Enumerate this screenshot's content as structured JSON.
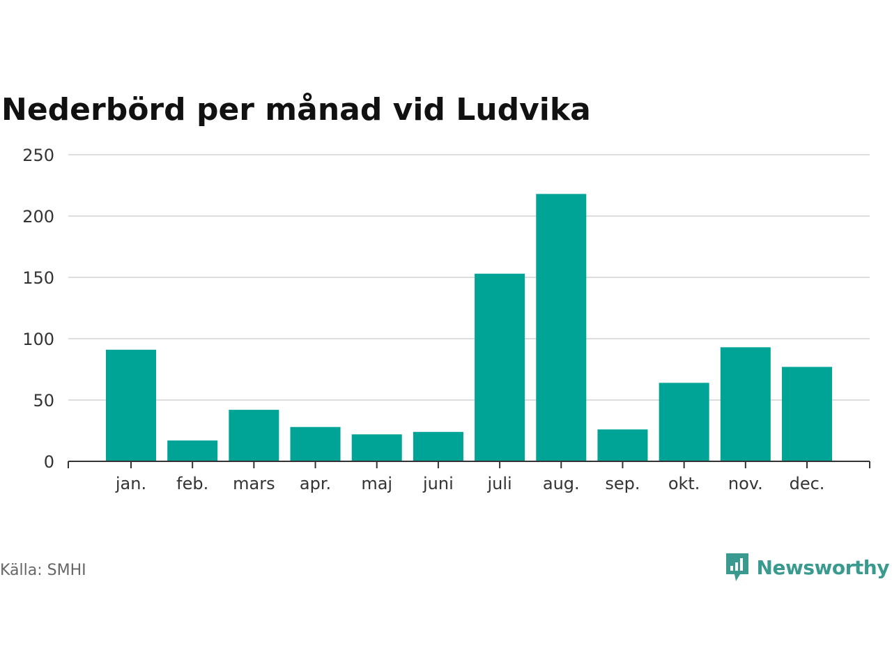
{
  "chart_data": {
    "type": "bar",
    "title": "Nederbörd per månad vid Ludvika",
    "categories": [
      "jan.",
      "feb.",
      "mars",
      "apr.",
      "maj",
      "juni",
      "juli",
      "aug.",
      "sep.",
      "okt.",
      "nov.",
      "dec."
    ],
    "values": [
      91,
      17,
      42,
      28,
      22,
      24,
      153,
      218,
      26,
      64,
      93,
      77
    ],
    "ylim": [
      0,
      250
    ],
    "yticks": [
      0,
      50,
      100,
      150,
      200,
      250
    ],
    "grid": true,
    "bar_color": "#00a497",
    "xlabel": "",
    "ylabel": ""
  },
  "source": "Källa: SMHI",
  "brand": {
    "name": "Newsworthy",
    "color": "#3a9a8f",
    "icon": "newsworthy-logo-icon"
  }
}
